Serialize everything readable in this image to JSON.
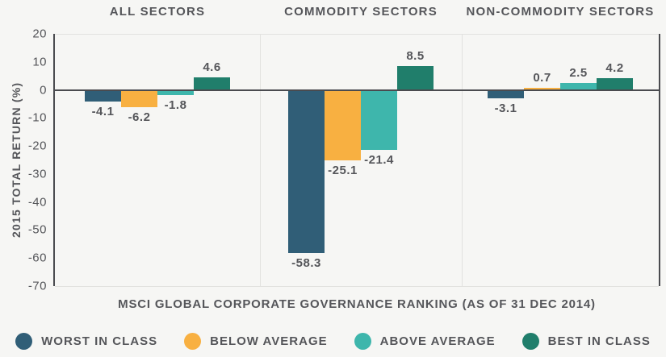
{
  "chart_data": {
    "type": "bar",
    "ylabel": "2015 TOTAL RETURN (%)",
    "xlabel": "MSCI GLOBAL CORPORATE GOVERNANCE RANKING (AS OF 31 DEC 2014)",
    "ylim": [
      -70,
      20
    ],
    "yticks": [
      20,
      10,
      0,
      -10,
      -20,
      -30,
      -40,
      -50,
      -60,
      -70
    ],
    "grid": false,
    "legend_position": "bottom",
    "categories": [
      "ALL SECTORS",
      "COMMODITY SECTORS",
      "NON-COMMODITY SECTORS"
    ],
    "series": [
      {
        "name": "WORST IN CLASS",
        "color": "#305E77",
        "values": [
          -4.1,
          -58.3,
          -3.1
        ]
      },
      {
        "name": "BELOW AVERAGE",
        "color": "#F8B041",
        "values": [
          -6.2,
          -25.1,
          0.7
        ]
      },
      {
        "name": "ABOVE AVERAGE",
        "color": "#3EB6AC",
        "values": [
          -1.8,
          -21.4,
          2.5
        ]
      },
      {
        "name": "BEST IN CLASS",
        "color": "#207E6B",
        "values": [
          4.6,
          8.5,
          4.2
        ]
      }
    ],
    "axis_color": "#4A4B4F",
    "divider_color": "#E2E2DF",
    "text_color": "#55565A",
    "background_color": "#F6F6F4"
  }
}
